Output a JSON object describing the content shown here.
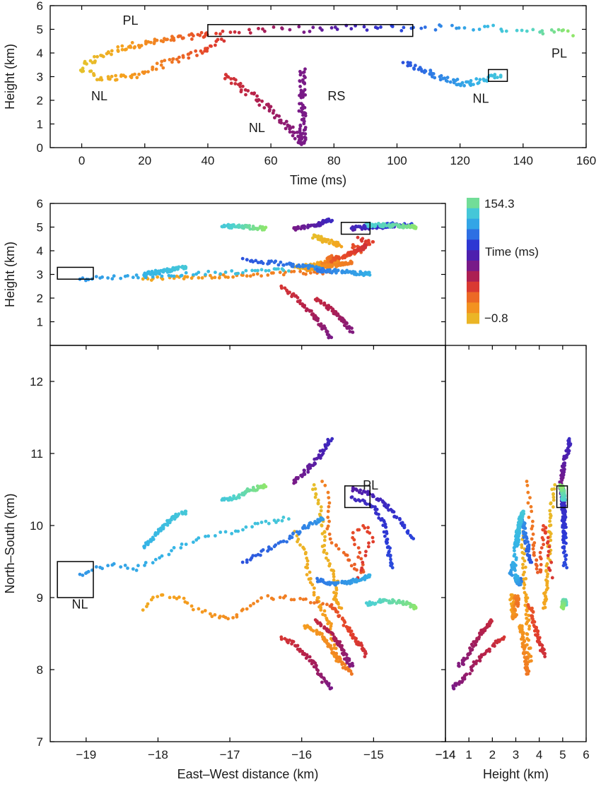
{
  "colorbar": {
    "max_label": "154.3",
    "min_label": "−0.8",
    "title": "Time (ms)",
    "min_value": -0.8,
    "max_value": 154.3,
    "stops": [
      "#e3c52d",
      "#f5a11e",
      "#f07a23",
      "#e33f2b",
      "#b3204c",
      "#7a1a86",
      "#4b1fb0",
      "#2a3ad8",
      "#2f7de6",
      "#35b5e6",
      "#4fd2cf",
      "#8fe66a"
    ]
  },
  "chart_data": [
    {
      "id": "time-height",
      "type": "scatter",
      "xlabel": "Time (ms)",
      "ylabel": "Height (km)",
      "xlim": [
        -10,
        160
      ],
      "ylim": [
        0,
        6
      ],
      "xticks": [
        0,
        20,
        40,
        60,
        80,
        100,
        120,
        140,
        160
      ],
      "yticks": [
        0,
        1,
        2,
        3,
        4,
        5,
        6
      ],
      "series": [
        {
          "label": "PL",
          "time": [
            0,
            40
          ],
          "points": [
            [
              0,
              3.4
            ],
            [
              5,
              3.8
            ],
            [
              10,
              4.1
            ],
            [
              15,
              4.3
            ],
            [
              20,
              4.4
            ],
            [
              25,
              4.5
            ],
            [
              30,
              4.6
            ],
            [
              35,
              4.7
            ],
            [
              40,
              4.8
            ]
          ]
        },
        {
          "label": "NL",
          "time": [
            0,
            45
          ],
          "points": [
            [
              0,
              3.3
            ],
            [
              5,
              3.0
            ],
            [
              10,
              2.9
            ],
            [
              15,
              3.0
            ],
            [
              20,
              3.2
            ],
            [
              25,
              3.5
            ],
            [
              30,
              3.7
            ],
            [
              35,
              3.9
            ],
            [
              40,
              4.2
            ],
            [
              45,
              4.6
            ]
          ]
        },
        {
          "label": "NL",
          "time": [
            45,
            70
          ],
          "points": [
            [
              45,
              3.1
            ],
            [
              50,
              2.6
            ],
            [
              55,
              2.1
            ],
            [
              60,
              1.6
            ],
            [
              65,
              1.0
            ],
            [
              68,
              0.6
            ],
            [
              70,
              0.1
            ]
          ]
        },
        {
          "label": "RS",
          "time": [
            69,
            71
          ],
          "points": [
            [
              70,
              0.1
            ],
            [
              70,
              0.8
            ],
            [
              70,
              1.6
            ],
            [
              70,
              2.4
            ],
            [
              70,
              3.3
            ]
          ]
        },
        {
          "label": "PL",
          "time": [
            40,
            155
          ],
          "points": [
            [
              40,
              4.85
            ],
            [
              55,
              4.95
            ],
            [
              70,
              5.0
            ],
            [
              85,
              5.05
            ],
            [
              100,
              5.05
            ],
            [
              115,
              5.1
            ],
            [
              130,
              5.05
            ],
            [
              145,
              4.95
            ],
            [
              155,
              4.85
            ]
          ]
        },
        {
          "label": "NL",
          "time": [
            103,
            135
          ],
          "points": [
            [
              103,
              3.6
            ],
            [
              108,
              3.3
            ],
            [
              113,
              3.0
            ],
            [
              118,
              2.8
            ],
            [
              123,
              2.7
            ],
            [
              128,
              2.9
            ],
            [
              133,
              3.1
            ]
          ]
        }
      ],
      "annotations": [
        {
          "text": "PL",
          "x": 13,
          "y": 5.2
        },
        {
          "text": "NL",
          "x": 3,
          "y": 2.0
        },
        {
          "text": "NL",
          "x": 53,
          "y": 0.65
        },
        {
          "text": "RS",
          "x": 78,
          "y": 2.0
        },
        {
          "text": "NL",
          "x": 124,
          "y": 1.9
        },
        {
          "text": "PL",
          "x": 149,
          "y": 3.8
        }
      ],
      "boxes": [
        {
          "x": [
            40,
            105
          ],
          "y": [
            4.7,
            5.2
          ]
        },
        {
          "x": [
            129,
            135
          ],
          "y": [
            2.8,
            3.3
          ]
        }
      ]
    },
    {
      "id": "ew-height",
      "type": "scatter",
      "xlabel": "",
      "ylabel": "Height (km)",
      "xlim": [
        -19.5,
        -14
      ],
      "ylim": [
        0,
        6
      ],
      "yticks": [
        1,
        2,
        3,
        4,
        5,
        6
      ],
      "boxes": [
        {
          "x": [
            -19.4,
            -18.9
          ],
          "y": [
            2.8,
            3.3
          ]
        },
        {
          "x": [
            -15.45,
            -15.05
          ],
          "y": [
            4.7,
            5.2
          ]
        }
      ]
    },
    {
      "id": "plan-view",
      "type": "scatter",
      "xlabel": "East–West distance (km)",
      "ylabel": "North–South (km)",
      "xlim": [
        -19.5,
        -14
      ],
      "ylim": [
        7,
        12.5
      ],
      "xticks": [
        -19,
        -18,
        -17,
        -16,
        -15,
        -14
      ],
      "yticks": [
        7,
        8,
        9,
        10,
        11,
        12
      ],
      "annotations": [
        {
          "text": "PL",
          "x": -15.15,
          "y": 10.5
        },
        {
          "text": "NL",
          "x": -19.2,
          "y": 8.85
        }
      ],
      "boxes": [
        {
          "x": [
            -19.4,
            -18.9
          ],
          "y": [
            9.0,
            9.5
          ]
        },
        {
          "x": [
            -15.4,
            -15.05
          ],
          "y": [
            10.25,
            10.55
          ]
        }
      ]
    },
    {
      "id": "height-ns",
      "type": "scatter",
      "xlabel": "Height (km)",
      "ylabel": "",
      "xlim": [
        0,
        6
      ],
      "ylim": [
        7,
        12.5
      ],
      "xticks": [
        1,
        2,
        3,
        4,
        5,
        6
      ],
      "boxes": [
        {
          "x": [
            4.75,
            5.2
          ],
          "y": [
            10.25,
            10.55
          ]
        }
      ]
    }
  ],
  "tracks": [
    {
      "t": [
        2,
        12
      ],
      "plan": [
        [
          -15.85,
          10.55
        ],
        [
          -15.75,
          10.3
        ],
        [
          -15.7,
          10.0
        ],
        [
          -15.7,
          9.7
        ],
        [
          -15.6,
          9.4
        ],
        [
          -15.5,
          9.2
        ],
        [
          -15.55,
          9.0
        ],
        [
          -15.45,
          8.85
        ]
      ],
      "h": [
        4.6,
        4.2
      ]
    },
    {
      "t": [
        5,
        20
      ],
      "plan": [
        [
          -16.1,
          9.9
        ],
        [
          -15.95,
          9.6
        ],
        [
          -15.9,
          9.3
        ],
        [
          -15.8,
          9.0
        ],
        [
          -15.7,
          8.8
        ],
        [
          -15.6,
          8.6
        ],
        [
          -15.55,
          8.3
        ],
        [
          -15.5,
          8.1
        ]
      ],
      "h": [
        3.3,
        3.6
      ]
    },
    {
      "t": [
        10,
        30
      ],
      "plan": [
        [
          -18.2,
          8.85
        ],
        [
          -18.0,
          9.05
        ],
        [
          -17.7,
          9.0
        ],
        [
          -17.5,
          8.85
        ],
        [
          -17.2,
          8.75
        ],
        [
          -17.0,
          8.7
        ],
        [
          -16.8,
          8.85
        ],
        [
          -16.5,
          9.0
        ],
        [
          -16.2,
          9.0
        ],
        [
          -15.9,
          8.95
        ],
        [
          -15.6,
          8.9
        ]
      ],
      "h": [
        2.8,
        3.1
      ]
    },
    {
      "t": [
        15,
        28
      ],
      "plan": [
        [
          -15.95,
          8.6
        ],
        [
          -15.75,
          8.5
        ],
        [
          -15.6,
          8.3
        ],
        [
          -15.45,
          8.1
        ],
        [
          -15.3,
          7.95
        ]
      ],
      "h": [
        3.2,
        3.5
      ]
    },
    {
      "t": [
        25,
        45
      ],
      "plan": [
        [
          -15.7,
          10.6
        ],
        [
          -15.6,
          10.3
        ],
        [
          -15.65,
          10.0
        ],
        [
          -15.55,
          9.75
        ],
        [
          -15.4,
          9.6
        ],
        [
          -15.3,
          9.45
        ],
        [
          -15.15,
          9.35
        ],
        [
          -15.2,
          9.6
        ],
        [
          -15.3,
          9.85
        ],
        [
          -15.15,
          10.0
        ],
        [
          -15.0,
          9.85
        ],
        [
          -15.1,
          9.6
        ],
        [
          -15.2,
          9.3
        ]
      ],
      "h": [
        3.5,
        4.5
      ]
    },
    {
      "t": [
        35,
        48
      ],
      "plan": [
        [
          -15.6,
          8.9
        ],
        [
          -15.45,
          8.7
        ],
        [
          -15.3,
          8.5
        ],
        [
          -15.2,
          8.35
        ],
        [
          -15.1,
          8.2
        ]
      ],
      "h": [
        3.6,
        4.2
      ]
    },
    {
      "t": [
        45,
        70
      ],
      "plan": [
        [
          -16.3,
          8.45
        ],
        [
          -16.1,
          8.35
        ],
        [
          -15.95,
          8.2
        ],
        [
          -15.8,
          8.05
        ],
        [
          -15.7,
          7.85
        ],
        [
          -15.6,
          7.75
        ]
      ],
      "h": [
        2.5,
        0.3
      ]
    },
    {
      "t": [
        50,
        68
      ],
      "plan": [
        [
          -15.8,
          8.7
        ],
        [
          -15.65,
          8.55
        ],
        [
          -15.5,
          8.4
        ],
        [
          -15.4,
          8.2
        ],
        [
          -15.3,
          8.05
        ]
      ],
      "h": [
        2.0,
        0.6
      ]
    },
    {
      "t": [
        70,
        90
      ],
      "plan": [
        [
          -16.1,
          10.6
        ],
        [
          -15.95,
          10.75
        ],
        [
          -15.8,
          10.9
        ],
        [
          -15.7,
          11.05
        ],
        [
          -15.6,
          11.2
        ]
      ],
      "h": [
        4.9,
        5.3
      ]
    },
    {
      "t": [
        80,
        100
      ],
      "plan": [
        [
          -15.3,
          10.5
        ],
        [
          -15.1,
          10.45
        ],
        [
          -14.9,
          10.35
        ],
        [
          -14.75,
          10.2
        ],
        [
          -14.6,
          10.0
        ],
        [
          -14.45,
          9.8
        ]
      ],
      "h": [
        4.95,
        5.1
      ]
    },
    {
      "t": [
        88,
        102
      ],
      "plan": [
        [
          -15.3,
          10.4
        ],
        [
          -15.0,
          10.25
        ],
        [
          -14.85,
          10.0
        ],
        [
          -14.8,
          9.7
        ],
        [
          -14.75,
          9.4
        ]
      ],
      "h": [
        5.0,
        5.1
      ]
    },
    {
      "t": [
        103,
        120
      ],
      "plan": [
        [
          -16.8,
          9.5
        ],
        [
          -16.5,
          9.65
        ],
        [
          -16.2,
          9.8
        ],
        [
          -16.0,
          9.95
        ],
        [
          -15.8,
          10.05
        ],
        [
          -15.7,
          10.1
        ]
      ],
      "h": [
        3.6,
        3.2
      ]
    },
    {
      "t": [
        110,
        125
      ],
      "plan": [
        [
          -15.8,
          9.25
        ],
        [
          -15.6,
          9.2
        ],
        [
          -15.4,
          9.2
        ],
        [
          -15.2,
          9.25
        ],
        [
          -15.05,
          9.3
        ]
      ],
      "h": [
        3.2,
        3.0
      ]
    },
    {
      "t": [
        118,
        135
      ],
      "plan": [
        [
          -19.1,
          9.3
        ],
        [
          -18.9,
          9.4
        ],
        [
          -18.6,
          9.45
        ],
        [
          -18.3,
          9.4
        ],
        [
          -18.0,
          9.55
        ],
        [
          -17.7,
          9.7
        ],
        [
          -17.4,
          9.85
        ],
        [
          -17.0,
          9.9
        ],
        [
          -16.7,
          10.0
        ],
        [
          -16.4,
          10.05
        ],
        [
          -16.2,
          10.1
        ]
      ],
      "h": [
        2.8,
        3.2
      ]
    },
    {
      "t": [
        125,
        135
      ],
      "plan": [
        [
          -18.2,
          9.7
        ],
        [
          -18.0,
          9.9
        ],
        [
          -17.8,
          10.1
        ],
        [
          -17.6,
          10.2
        ]
      ],
      "h": [
        3.0,
        3.3
      ]
    },
    {
      "t": [
        135,
        154
      ],
      "plan": [
        [
          -17.1,
          10.35
        ],
        [
          -16.9,
          10.4
        ],
        [
          -16.7,
          10.5
        ],
        [
          -16.5,
          10.55
        ]
      ],
      "h": [
        5.05,
        4.95
      ]
    },
    {
      "t": [
        138,
        154
      ],
      "plan": [
        [
          -15.1,
          8.9
        ],
        [
          -14.9,
          8.95
        ],
        [
          -14.7,
          8.95
        ],
        [
          -14.5,
          8.9
        ],
        [
          -14.4,
          8.85
        ]
      ],
      "h": [
        5.1,
        5.0
      ]
    }
  ]
}
